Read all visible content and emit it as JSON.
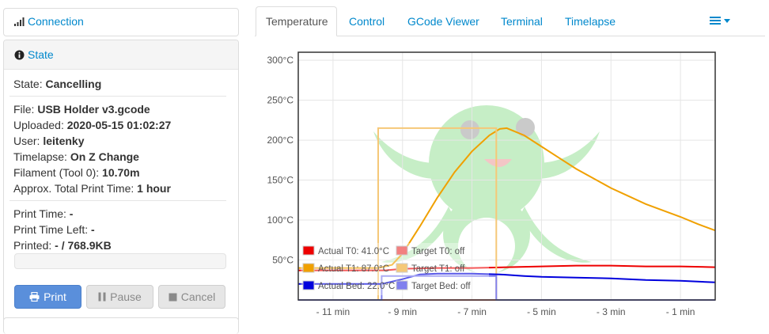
{
  "connection": {
    "label": "Connection"
  },
  "state": {
    "title": "State",
    "state_label": "State:",
    "state_value": "Cancelling",
    "file_label": "File:",
    "file_value": "USB Holder v3.gcode",
    "uploaded_label": "Uploaded:",
    "uploaded_value": "2020-05-15 01:02:27",
    "user_label": "User:",
    "user_value": "leitenky",
    "timelapse_label": "Timelapse:",
    "timelapse_value": "On Z Change",
    "filament_label": "Filament (Tool 0):",
    "filament_value": "10.70m",
    "approx_label": "Approx. Total Print Time:",
    "approx_value": "1 hour",
    "print_time_label": "Print Time:",
    "print_time_value": "-",
    "time_left_label": "Print Time Left:",
    "time_left_value": "-",
    "printed_label": "Printed:",
    "printed_value": "- / 768.9KB",
    "progress": 0,
    "buttons": {
      "print": "Print",
      "pause": "Pause",
      "cancel": "Cancel"
    }
  },
  "tabs": [
    {
      "label": "Temperature",
      "active": true
    },
    {
      "label": "Control"
    },
    {
      "label": "GCode Viewer"
    },
    {
      "label": "Terminal"
    },
    {
      "label": "Timelapse"
    }
  ],
  "colors": {
    "actual_t0": "#ee0000",
    "target_t0": "#f28080",
    "actual_t1": "#f0a000",
    "target_t1": "#f5c878",
    "actual_bed": "#0000dd",
    "target_bed": "#8080ee",
    "link": "#0088cc",
    "primary": "#5a8fdb"
  },
  "icons": {
    "connection": "signal-bars-icon",
    "state": "info-circle-icon",
    "print": "print-icon",
    "pause": "pause-icon",
    "cancel": "stop-icon",
    "menu": "list-menu-icon"
  },
  "chart_data": {
    "type": "line",
    "ylim": [
      0,
      310
    ],
    "xlim": [
      -12,
      0
    ],
    "y_ticks": [
      50,
      100,
      150,
      200,
      250,
      300
    ],
    "y_tick_labels": [
      "50°C",
      "100°C",
      "150°C",
      "200°C",
      "250°C",
      "300°C"
    ],
    "x_ticks": [
      -11,
      -9,
      -7,
      -5,
      -3,
      -1
    ],
    "x_tick_labels": [
      "- 11 min",
      "- 9 min",
      "- 7 min",
      "- 5 min",
      "- 3 min",
      "- 1 min"
    ],
    "legend_position": "bottom-left",
    "legend": [
      "Actual T0: 41.0°C",
      "Target T0: off",
      "Actual T1: 87.0°C",
      "Target T1: off",
      "Actual Bed: 22.0°C",
      "Target Bed: off"
    ],
    "series": [
      {
        "name": "Actual T0",
        "color": "#ee0000",
        "x": [
          -12,
          -9.5,
          -9,
          -8,
          -7,
          -6,
          -5,
          -4,
          -3,
          -2,
          -1,
          0
        ],
        "y": [
          37,
          37,
          39,
          40,
          40,
          41,
          42,
          43,
          43,
          42,
          42,
          41
        ]
      },
      {
        "name": "Target T0",
        "color": "#f28080",
        "x": [
          -12,
          0
        ],
        "y": [
          0,
          0
        ]
      },
      {
        "name": "Actual T1",
        "color": "#f0a000",
        "x": [
          -12,
          -10,
          -9.7,
          -9.3,
          -9,
          -8.5,
          -8,
          -7.5,
          -7,
          -6.5,
          -6.2,
          -6,
          -5.5,
          -5,
          -4.5,
          -4,
          -3.5,
          -3,
          -2.5,
          -2,
          -1.5,
          -1,
          -0.5,
          0
        ],
        "y": [
          40,
          40,
          40,
          44,
          58,
          92,
          128,
          160,
          186,
          206,
          214,
          215,
          206,
          192,
          178,
          164,
          152,
          140,
          130,
          120,
          112,
          104,
          95,
          87
        ]
      },
      {
        "name": "Target T1",
        "color": "#f5c878",
        "x": [
          -12,
          -9.7,
          -9.7,
          -6.3,
          -6.3,
          0
        ],
        "y": [
          0,
          0,
          215,
          215,
          0,
          0
        ]
      },
      {
        "name": "Actual Bed",
        "color": "#0000dd",
        "x": [
          -12,
          -10,
          -9.6,
          -9,
          -8.5,
          -8,
          -7,
          -6.2,
          -5.5,
          -5,
          -4,
          -3,
          -2,
          -1,
          0
        ],
        "y": [
          20,
          20,
          20,
          26,
          32,
          33,
          33,
          32,
          30,
          29,
          28,
          27,
          25,
          24,
          22
        ]
      },
      {
        "name": "Target Bed",
        "color": "#8080ee",
        "x": [
          -12,
          -9.6,
          -9.6,
          -6.3,
          -6.3,
          0
        ],
        "y": [
          0,
          0,
          30,
          30,
          0,
          0
        ]
      }
    ]
  }
}
